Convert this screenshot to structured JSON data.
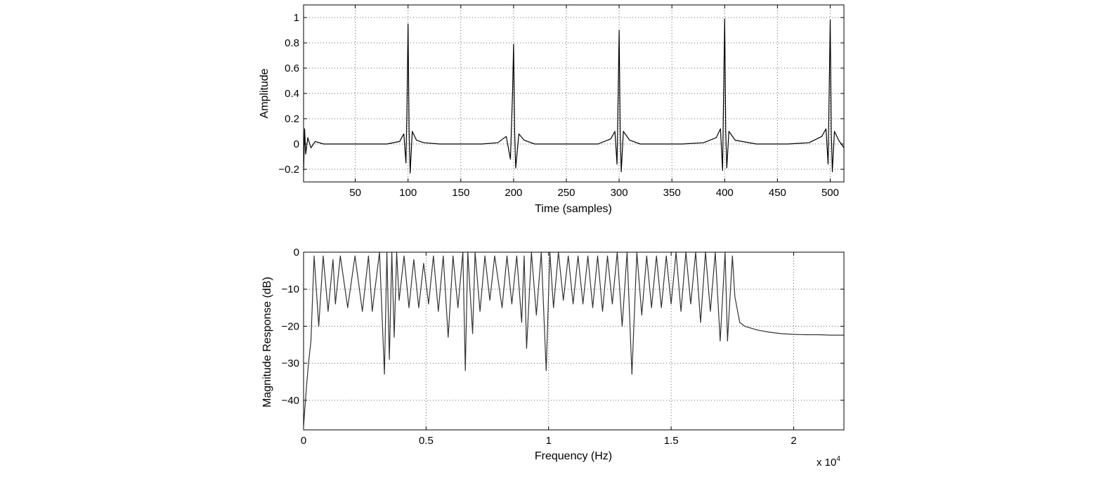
{
  "chart_data": [
    {
      "type": "line",
      "title": "",
      "xlabel": "Time (samples)",
      "ylabel": "Amplitude",
      "xlim": [
        1,
        513
      ],
      "ylim": [
        -0.3,
        1.1
      ],
      "xticks": [
        50,
        100,
        150,
        200,
        250,
        300,
        350,
        400,
        450,
        500
      ],
      "xtick_labels": [
        "50",
        "100",
        "150",
        "200",
        "250",
        "300",
        "350",
        "400",
        "450",
        "500"
      ],
      "yticks": [
        -0.2,
        0,
        0.2,
        0.4,
        0.6,
        0.8,
        1
      ],
      "ytick_labels": [
        "−0.2",
        "0",
        "0.2",
        "0.4",
        "0.6",
        "0.8",
        "1"
      ],
      "grid": true,
      "line_color": "#000000",
      "series": [
        {
          "x": [
            1,
            2,
            3,
            5,
            8,
            12,
            20,
            40,
            60,
            80,
            92,
            96,
            98,
            99,
            100,
            101,
            102,
            104,
            108,
            115,
            130,
            150,
            170,
            185,
            193,
            197,
            199,
            200,
            201,
            202,
            205,
            210,
            220,
            240,
            260,
            280,
            292,
            296,
            298,
            299,
            300,
            301,
            302,
            304,
            310,
            320,
            340,
            360,
            380,
            392,
            396,
            398,
            399,
            400,
            401,
            402,
            404,
            410,
            430,
            460,
            480,
            492,
            496,
            498,
            499,
            500,
            501,
            502,
            504,
            508,
            513
          ],
          "y": [
            -0.22,
            0.12,
            -0.08,
            0.05,
            -0.03,
            0.02,
            0.0,
            0.0,
            0.0,
            0.0,
            0.02,
            0.08,
            -0.15,
            0.3,
            0.95,
            0.1,
            -0.23,
            0.1,
            0.03,
            0.01,
            0.0,
            0.0,
            0.0,
            0.01,
            0.06,
            -0.12,
            0.4,
            0.79,
            0.1,
            -0.19,
            0.08,
            0.03,
            0.0,
            0.0,
            0.0,
            0.0,
            0.04,
            0.1,
            -0.16,
            0.35,
            0.9,
            0.1,
            -0.22,
            0.1,
            0.03,
            0.0,
            0.0,
            0.0,
            0.01,
            0.05,
            0.12,
            -0.21,
            0.4,
            0.99,
            0.1,
            -0.19,
            0.1,
            0.03,
            0.0,
            0.0,
            0.01,
            0.06,
            0.12,
            -0.16,
            0.4,
            0.98,
            0.1,
            -0.22,
            0.1,
            0.03,
            -0.03
          ]
        }
      ]
    },
    {
      "type": "line",
      "title": "",
      "xlabel": "Frequency (Hz)",
      "ylabel": "Magnitude Response (dB)",
      "xlim": [
        0,
        22050
      ],
      "ylim": [
        -48,
        0
      ],
      "xticks": [
        0,
        5000,
        10000,
        15000,
        20000
      ],
      "xtick_labels": [
        "0",
        "0.5",
        "1",
        "1.5",
        "2"
      ],
      "x_multiplier": "x 10",
      "x_multiplier_exp": "4",
      "yticks": [
        -40,
        -30,
        -20,
        -10,
        0
      ],
      "ytick_labels": [
        "−40",
        "−30",
        "−20",
        "−10",
        "0"
      ],
      "grid": true,
      "line_color": "#333333",
      "series": [
        {
          "x": [
            0,
            100,
            200,
            300,
            430,
            620,
            800,
            1000,
            1200,
            1300,
            1500,
            1800,
            2100,
            2400,
            2650,
            2800,
            3100,
            3300,
            3400,
            3500,
            3600,
            3700,
            3800,
            3900,
            4100,
            4300,
            4500,
            4700,
            4900,
            5100,
            5300,
            5500,
            5700,
            5900,
            6100,
            6300,
            6500,
            6600,
            6700,
            6900,
            7000,
            7200,
            7400,
            7600,
            7800,
            8100,
            8300,
            8500,
            8700,
            8900,
            9000,
            9100,
            9300,
            9500,
            9700,
            9900,
            10050,
            10200,
            10400,
            10600,
            10800,
            11000,
            11200,
            11400,
            11600,
            11800,
            12000,
            12200,
            12400,
            12600,
            12800,
            13000,
            13200,
            13400,
            13600,
            13800,
            14000,
            14200,
            14400,
            14600,
            14800,
            15000,
            15200,
            15400,
            15600,
            15800,
            16000,
            16200,
            16400,
            16600,
            16800,
            17000,
            17200,
            17300,
            17500,
            17600,
            17800,
            18000,
            18500,
            19000,
            19500,
            20000,
            20500,
            21000,
            21500,
            22050
          ],
          "y": [
            -47,
            -38,
            -30,
            -24,
            -1,
            -20,
            -1,
            -16,
            -2,
            -14,
            -1,
            -15,
            -1,
            -16,
            -1,
            -16,
            0,
            -33,
            0,
            -29,
            0,
            -23,
            0,
            -13,
            -1,
            -15,
            -2,
            -15,
            -3,
            -14,
            -1,
            -16,
            -1,
            -23,
            -1,
            -15,
            0,
            -32,
            0,
            -22,
            0,
            -16,
            -1,
            -13,
            -1,
            -15,
            -1,
            -14,
            -1,
            -19,
            -1,
            -26,
            0,
            -17,
            0,
            -32,
            0,
            -15,
            0,
            -13,
            -1,
            -14,
            -1,
            -14,
            -1,
            -15,
            -1,
            -16,
            -1,
            -14,
            0,
            -20,
            0,
            -33,
            0,
            -17,
            -1,
            -15,
            -1,
            -15,
            -1,
            -14,
            0,
            -16,
            0,
            -14,
            0,
            -19,
            0,
            -16,
            0,
            -24,
            0,
            -24,
            -1,
            -12,
            -19,
            -20,
            -21,
            -21.6,
            -22,
            -22.2,
            -22.3,
            -22.3,
            -22.4,
            -22.4
          ]
        }
      ]
    }
  ]
}
